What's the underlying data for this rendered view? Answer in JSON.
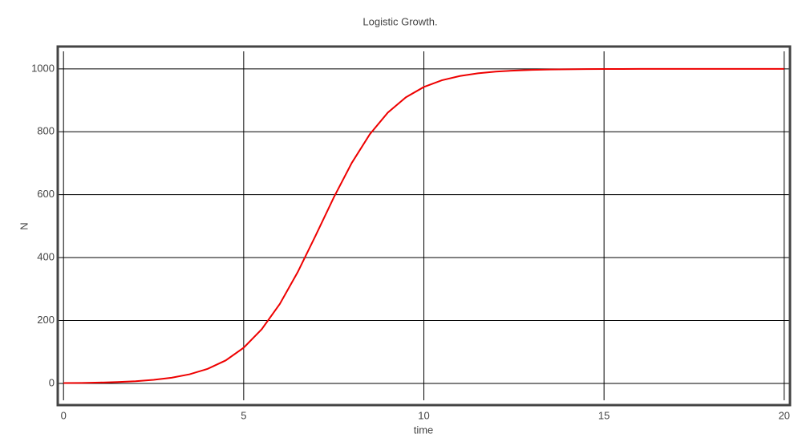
{
  "chart_data": {
    "type": "line",
    "title": "Logistic Growth.",
    "x_label": "time",
    "y_label": "N",
    "x": [
      0,
      0.5,
      1,
      1.5,
      2,
      2.5,
      3,
      3.5,
      4,
      4.5,
      5,
      5.5,
      6,
      6.5,
      7,
      7.5,
      8,
      8.5,
      9,
      9.5,
      10,
      10.5,
      11,
      11.5,
      12,
      12.5,
      13,
      13.5,
      14,
      14.5,
      15,
      15.5,
      16,
      16.5,
      17,
      17.5,
      18,
      18.5,
      19,
      19.5,
      20
    ],
    "series": [
      {
        "name": "N",
        "color": "#ee0000",
        "values": [
          1,
          1.6,
          2.6,
          4.3,
          6.9,
          11.2,
          18,
          29,
          46.2,
          73,
          113.4,
          172,
          252.2,
          354,
          470.8,
          591,
          701.1,
          792.2,
          860.9,
          909.5,
          942.3,
          963.7,
          977.3,
          985.9,
          991.3,
          994.6,
          996.7,
          998,
          998.7,
          999.2,
          999.5,
          999.7,
          999.8,
          999.9,
          999.9,
          1000,
          1000,
          1000,
          1000,
          1000,
          1000
        ]
      }
    ],
    "xlim": [
      -0.16,
      20.16
    ],
    "ylim": [
      -69,
      1071
    ],
    "xticks": [
      0,
      5,
      10,
      15,
      20
    ],
    "yticks": [
      0,
      200,
      400,
      600,
      800,
      1000
    ],
    "grid": true
  }
}
